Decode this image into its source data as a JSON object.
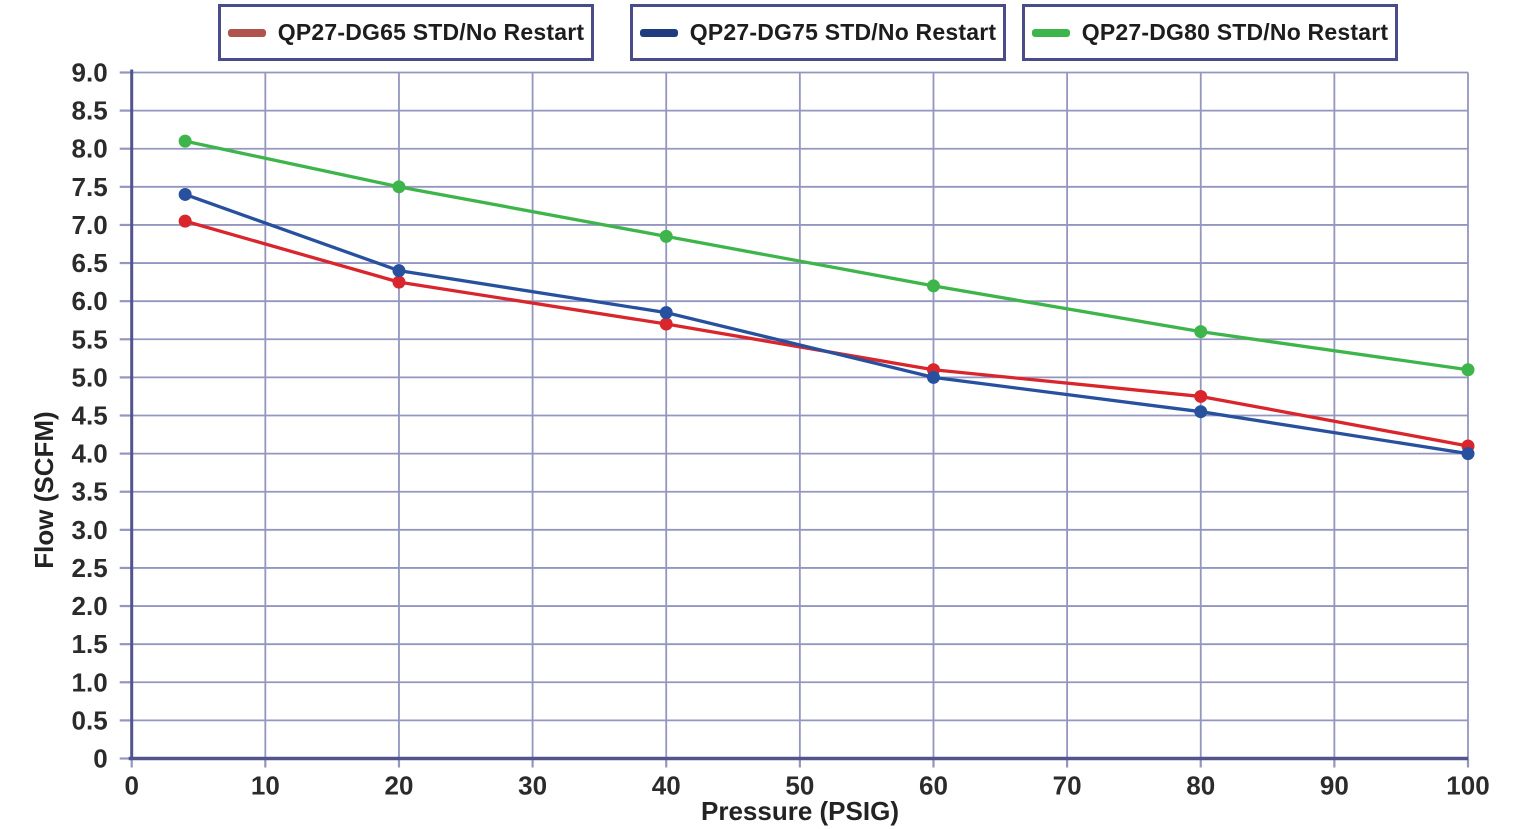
{
  "chart_data": {
    "type": "line",
    "title": "",
    "xlabel": "Pressure (PSIG)",
    "ylabel": "Flow (SCFM)",
    "xlim": [
      0,
      100
    ],
    "ylim": [
      0,
      9
    ],
    "grid": true,
    "legend_position": "top",
    "xticks": [
      0,
      10,
      20,
      30,
      40,
      50,
      60,
      70,
      80,
      90,
      100
    ],
    "xtick_labels": [
      "0",
      "10",
      "20",
      "30",
      "40",
      "50",
      "60",
      "70",
      "80",
      "90",
      "100"
    ],
    "yticks": [
      0,
      0.5,
      1,
      1.5,
      2,
      2.5,
      3,
      3.5,
      4,
      4.5,
      5,
      5.5,
      6,
      6.5,
      7,
      7.5,
      8,
      8.5,
      9
    ],
    "ytick_labels": [
      "0",
      "0.5",
      "1.0",
      "1.5",
      "2.0",
      "2.5",
      "3.0",
      "3.5",
      "4.0",
      "4.5",
      "5.0",
      "5.5",
      "6.0",
      "6.5",
      "7.0",
      "7.5",
      "8.0",
      "8.5",
      "9.0"
    ],
    "x": [
      4,
      20,
      40,
      60,
      80,
      100
    ],
    "series": [
      {
        "name": "QP27-DG65 STD/No Restart",
        "line_color": "#d9262d",
        "legend_color": "#b0524d",
        "values": [
          7.05,
          6.25,
          5.7,
          5.1,
          4.75,
          4.1
        ]
      },
      {
        "name": "QP27-DG75 STD/No Restart",
        "line_color": "#27509e",
        "legend_color": "#1e3c7e",
        "values": [
          7.4,
          6.4,
          5.85,
          5.0,
          4.55,
          4.0
        ]
      },
      {
        "name": "QP27-DG80 STD/No Restart",
        "line_color": "#3eb54b",
        "legend_color": "#3eb54b",
        "values": [
          8.1,
          7.5,
          6.85,
          6.2,
          5.6,
          5.1
        ]
      }
    ],
    "colors": {
      "grid": "#9396bf",
      "axis": "#52548c",
      "tick_text": "#2b2b2b",
      "legend_border": "#494c88",
      "legend_text": "#1d1d20"
    }
  }
}
